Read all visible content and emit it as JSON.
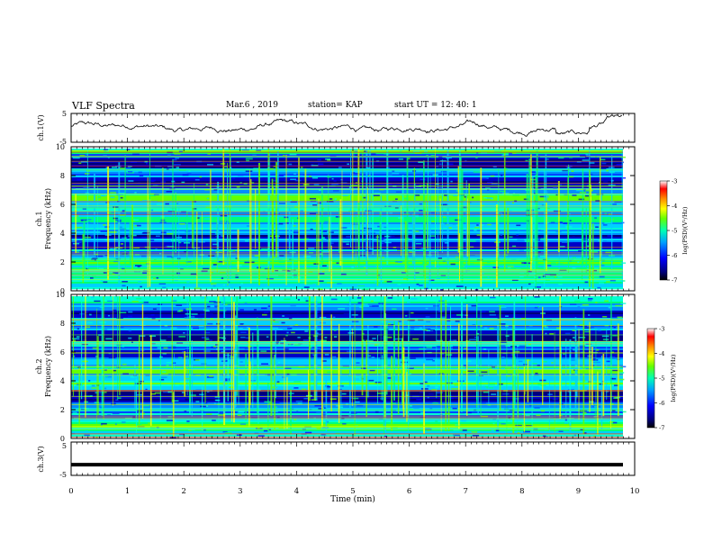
{
  "header": {
    "title": "VLF Spectra",
    "date": "Mar.6 , 2019",
    "station": "station= KAP",
    "start_ut": "start UT = 12: 40: 1"
  },
  "chart_data": [
    {
      "type": "line",
      "panel": "ch1-waveform",
      "ylabel": "ch.1(V)",
      "ylim": [
        -5,
        5
      ],
      "y_ticks": [
        "5",
        "-5"
      ],
      "xlim": [
        0,
        10
      ],
      "series": [
        {
          "values_hint": "noisy baseline waveform roughly between -3 and 3 V over 0–9.8 min"
        }
      ]
    },
    {
      "type": "heatmap",
      "panel": "ch1-spectrogram",
      "ylabel_line1": "ch.1",
      "ylabel_line2": "Frequency (kHz)",
      "ylim": [
        0,
        10
      ],
      "y_ticks": [
        "0",
        "2",
        "4",
        "6",
        "8",
        "10"
      ],
      "xlim": [
        0,
        9.8
      ],
      "colorbar": {
        "label": "log(PSD)(V²/Hz)",
        "range": [
          -7,
          -3
        ],
        "ticks": [
          "-3",
          "-4",
          "-5",
          "-6",
          "-7"
        ]
      },
      "dark_bands_khz": [
        [
          2.8,
          3.3
        ],
        [
          3.6,
          3.9
        ],
        [
          7.2,
          8.0
        ],
        [
          8.6,
          9.3
        ]
      ],
      "bright_bands_khz": [
        [
          0.3,
          2.3
        ],
        [
          4.8,
          5.2
        ],
        [
          6.3,
          6.8
        ],
        [
          9.6,
          10
        ]
      ]
    },
    {
      "type": "heatmap",
      "panel": "ch2-spectrogram",
      "ylabel_line1": "ch.2",
      "ylabel_line2": "Frequency (kHz)",
      "ylim": [
        0,
        10
      ],
      "y_ticks": [
        "0",
        "2",
        "4",
        "6",
        "8",
        "10"
      ],
      "xlim": [
        0,
        9.8
      ],
      "colorbar": {
        "label": "log(PSD)(V²/Hz)",
        "range": [
          -7,
          -3
        ],
        "ticks": [
          "-3",
          "-4",
          "-5",
          "-6",
          "-7"
        ]
      },
      "dark_bands_khz": [
        [
          2.4,
          3.3
        ],
        [
          5.6,
          6.2
        ],
        [
          6.8,
          7.6
        ],
        [
          8.4,
          9.0
        ]
      ],
      "bright_bands_khz": [
        [
          0.2,
          1.2
        ],
        [
          3.3,
          3.9
        ],
        [
          4.5,
          5.0
        ],
        [
          9.5,
          10
        ]
      ]
    },
    {
      "type": "line",
      "panel": "ch3-waveform",
      "ylabel": "ch.3(V)",
      "ylim": [
        -5,
        5
      ],
      "y_ticks": [
        "5",
        "-5"
      ],
      "xlim": [
        0,
        10
      ],
      "xlabel": "Time (min)",
      "x_ticks": [
        "0",
        "1",
        "2",
        "3",
        "4",
        "5",
        "6",
        "7",
        "8",
        "9",
        "10"
      ],
      "series": [
        {
          "constant_value": -1.8
        }
      ]
    }
  ],
  "colors": {
    "scale": [
      "#00007a",
      "#0000ff",
      "#0064ff",
      "#00c8ff",
      "#00ffc8",
      "#32ff32",
      "#c8ff00",
      "#ffff00",
      "#ffa000",
      "#ff3000",
      "#c00000",
      "#ffffff"
    ]
  }
}
